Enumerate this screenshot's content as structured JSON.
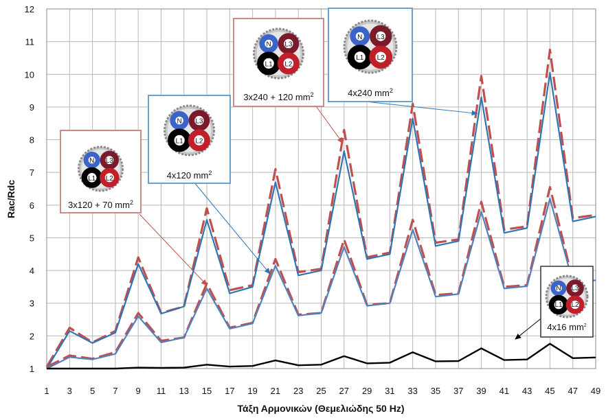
{
  "chart_data": {
    "type": "line",
    "title": "",
    "xlabel": "Τάξη Αρμονικών (Θεμελιώδης 50 Hz)",
    "ylabel": "Rac/Rdc",
    "x": [
      1,
      3,
      5,
      7,
      9,
      11,
      13,
      15,
      17,
      19,
      21,
      23,
      25,
      27,
      29,
      31,
      33,
      35,
      37,
      39,
      41,
      43,
      45,
      47,
      49
    ],
    "xlim": [
      1,
      49
    ],
    "ylim": [
      1,
      12
    ],
    "yticks": [
      1,
      2,
      3,
      4,
      5,
      6,
      7,
      8,
      9,
      10,
      11,
      12
    ],
    "grid": true,
    "legend": "none",
    "series": [
      {
        "color": "#c0504d",
        "dash": true,
        "values": [
          1.05,
          2.25,
          1.8,
          2.15,
          4.4,
          2.7,
          2.9,
          5.9,
          3.4,
          3.55,
          7.1,
          3.95,
          4.05,
          8.3,
          4.4,
          4.55,
          9.1,
          4.85,
          4.95,
          9.95,
          5.25,
          5.35,
          10.75,
          5.6,
          5.7
        ]
      },
      {
        "color": "#2e75b6",
        "dash": false,
        "values": [
          1.0,
          2.15,
          1.78,
          2.1,
          4.2,
          2.68,
          2.9,
          5.55,
          3.3,
          3.5,
          6.7,
          3.85,
          4.0,
          7.65,
          4.35,
          4.5,
          8.65,
          4.75,
          4.9,
          9.3,
          5.15,
          5.3,
          10.05,
          5.5,
          5.65
        ]
      },
      {
        "color": "#c0504d",
        "dash": true,
        "values": [
          1.05,
          1.4,
          1.3,
          1.5,
          2.7,
          1.85,
          1.95,
          3.6,
          2.25,
          2.4,
          4.35,
          2.65,
          2.7,
          4.95,
          2.95,
          3.0,
          5.55,
          3.25,
          3.3,
          6.1,
          3.5,
          3.55,
          6.55,
          3.7,
          3.75
        ]
      },
      {
        "color": "#4f81bd",
        "dash": false,
        "values": [
          1.0,
          1.35,
          1.28,
          1.45,
          2.6,
          1.8,
          1.95,
          3.45,
          2.22,
          2.38,
          4.15,
          2.62,
          2.7,
          4.72,
          2.92,
          3.0,
          5.25,
          3.2,
          3.28,
          5.8,
          3.45,
          3.52,
          6.2,
          3.65,
          3.7
        ]
      },
      {
        "color": "#000000",
        "dash": false,
        "values": [
          1.0,
          1.0,
          1.0,
          1.0,
          1.03,
          1.02,
          1.03,
          1.12,
          1.06,
          1.08,
          1.25,
          1.1,
          1.12,
          1.38,
          1.16,
          1.18,
          1.5,
          1.22,
          1.23,
          1.62,
          1.26,
          1.28,
          1.76,
          1.32,
          1.34
        ]
      }
    ],
    "annotations": [
      {
        "caption": "3x120 + 70 mm",
        "sup": "2",
        "labels": [
          "N",
          "L3",
          "L1",
          "L2"
        ],
        "border": "#c98a8a"
      },
      {
        "caption": "4x120 mm",
        "sup": "2",
        "labels": [
          "N",
          "L3",
          "L1",
          "L2"
        ],
        "border": "#6aa0cc"
      },
      {
        "caption": "3x240 + 120 mm",
        "sup": "2",
        "labels": [
          "N",
          "L3",
          "L1",
          "L2"
        ],
        "border": "#c98a8a"
      },
      {
        "caption": "4x240 mm",
        "sup": "2",
        "labels": [
          "N",
          "L3",
          "L1",
          "L2"
        ],
        "border": "#6aa0cc"
      },
      {
        "caption": "4x16 mm",
        "sup": "2",
        "labels": [
          "N",
          "L3",
          "L1",
          "L2"
        ],
        "border": "#333333"
      }
    ]
  }
}
